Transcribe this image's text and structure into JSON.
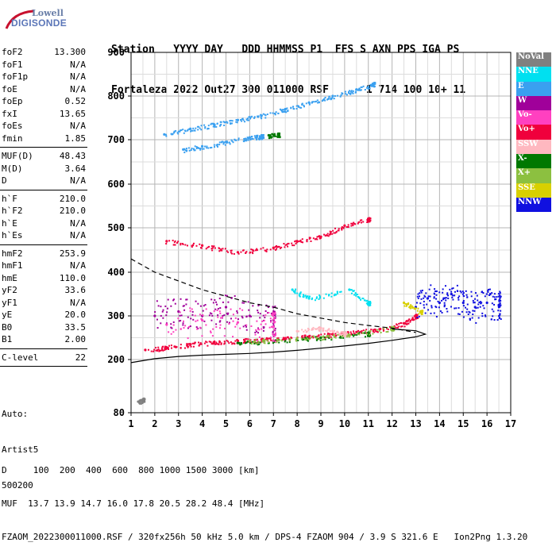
{
  "logo": {
    "line1": "Lowell",
    "line2": "DIGISONDE"
  },
  "header": {
    "line1": "Station   YYYY DAY   DDD HHMMSS P1  FFS S AXN PPS IGA PS",
    "line2": "Fortaleza 2022 Out27 300 011000 RSF      1 714 100 10+ 11"
  },
  "params": {
    "group1": [
      {
        "name": "foF2",
        "value": "13.300"
      },
      {
        "name": "foF1",
        "value": "N/A"
      },
      {
        "name": "foF1p",
        "value": "N/A"
      },
      {
        "name": "foE",
        "value": "N/A"
      },
      {
        "name": "foEp",
        "value": "0.52"
      },
      {
        "name": "fxI",
        "value": "13.65"
      },
      {
        "name": "foEs",
        "value": "N/A"
      },
      {
        "name": "fmin",
        "value": "1.85"
      }
    ],
    "group2": [
      {
        "name": "MUF(D)",
        "value": "48.43"
      },
      {
        "name": "M(D)",
        "value": "3.64"
      },
      {
        "name": "D",
        "value": "N/A"
      }
    ],
    "group3": [
      {
        "name": "h`F",
        "value": "210.0"
      },
      {
        "name": "h`F2",
        "value": "210.0"
      },
      {
        "name": "h`E",
        "value": "N/A"
      },
      {
        "name": "h`Es",
        "value": "N/A"
      }
    ],
    "group4": [
      {
        "name": "hmF2",
        "value": "253.9"
      },
      {
        "name": "hmF1",
        "value": "N/A"
      },
      {
        "name": "hmE",
        "value": "110.0"
      },
      {
        "name": "yF2",
        "value": "33.6"
      },
      {
        "name": "yF1",
        "value": "N/A"
      },
      {
        "name": "yE",
        "value": "20.0"
      },
      {
        "name": "B0",
        "value": "33.5"
      },
      {
        "name": "B1",
        "value": "2.00"
      }
    ],
    "group5": [
      {
        "name": "C-level",
        "value": "22"
      }
    ]
  },
  "auto": {
    "line1": "Auto:",
    "line2": "Artist5",
    "line3": "500200"
  },
  "legend": [
    {
      "label": "NoVal",
      "color": "#808080"
    },
    {
      "label": "NNE",
      "color": "#00e0f0"
    },
    {
      "label": "E",
      "color": "#3aa0f0"
    },
    {
      "label": "W",
      "color": "#a0009a"
    },
    {
      "label": "Vo-",
      "color": "#ff40c0"
    },
    {
      "label": "Vo+",
      "color": "#f0003c"
    },
    {
      "label": "SSW",
      "color": "#ffb8c0"
    },
    {
      "label": "X-",
      "color": "#007800"
    },
    {
      "label": "X+",
      "color": "#8cc040"
    },
    {
      "label": "SSE",
      "color": "#d8d000"
    },
    {
      "label": "NNW",
      "color": "#1010e0"
    }
  ],
  "footer": {
    "line1": "D     100  200  400  600  800 1000 1500 3000 [km]",
    "line2": "MUF  13.7 13.9 14.7 16.0 17.8 20.5 28.2 48.4 [MHz]",
    "line3": "FZAOM_2022300011000.RSF / 320fx256h 50 kHz 5.0 km / DPS-4 FZAOM 904 / 3.9 S 321.6 E   Ion2Png 1.3.20"
  },
  "chart_data": {
    "type": "scatter",
    "title": "",
    "xlabel": "",
    "ylabel": "",
    "xlim": [
      1,
      17
    ],
    "ylim": [
      80,
      900
    ],
    "x_ticks": [
      1,
      2,
      3,
      4,
      5,
      6,
      7,
      8,
      9,
      10,
      11,
      12,
      13,
      14,
      15,
      16,
      17
    ],
    "y_ticks": [
      80,
      200,
      300,
      400,
      500,
      600,
      700,
      800,
      900
    ],
    "grid": true,
    "legend_position": "right",
    "series": [
      {
        "name": "E",
        "values": [
          [
            2.4,
            712
          ],
          [
            3.5,
            725
          ],
          [
            4.5,
            735
          ],
          [
            5.5,
            745
          ],
          [
            6.5,
            755
          ],
          [
            7.5,
            770
          ],
          [
            8.5,
            785
          ],
          [
            9.5,
            800
          ],
          [
            10.5,
            815
          ],
          [
            11.2,
            828
          ]
        ]
      },
      {
        "name": "E",
        "values": [
          [
            3.2,
            678
          ],
          [
            4.0,
            685
          ],
          [
            5.0,
            695
          ],
          [
            6.0,
            705
          ],
          [
            6.5,
            708
          ]
        ]
      },
      {
        "name": "Vo+",
        "values": [
          [
            1.6,
            222
          ],
          [
            2.5,
            228
          ],
          [
            3.5,
            235
          ],
          [
            4.5,
            240
          ],
          [
            5.5,
            243
          ],
          [
            6.5,
            246
          ],
          [
            7.5,
            249
          ],
          [
            8.5,
            253
          ],
          [
            9.5,
            258
          ],
          [
            10.5,
            263
          ],
          [
            11.5,
            270
          ],
          [
            12.5,
            283
          ],
          [
            13.0,
            300
          ]
        ]
      },
      {
        "name": "X-",
        "values": [
          [
            5.5,
            238
          ],
          [
            7.0,
            242
          ],
          [
            9.0,
            250
          ],
          [
            11.0,
            260
          ]
        ]
      },
      {
        "name": "X+",
        "values": [
          [
            6.0,
            242
          ],
          [
            8.0,
            249
          ],
          [
            10.0,
            255
          ],
          [
            12.0,
            272
          ]
        ]
      },
      {
        "name": "W",
        "values": [
          [
            2.0,
            300
          ],
          [
            3.0,
            310
          ],
          [
            4.0,
            300
          ],
          [
            5.0,
            320
          ],
          [
            6.0,
            300
          ],
          [
            7.0,
            290
          ]
        ]
      },
      {
        "name": "Vo-",
        "values": [
          [
            2.5,
            280
          ],
          [
            4.0,
            290
          ],
          [
            5.5,
            285
          ],
          [
            7.0,
            275
          ]
        ]
      },
      {
        "name": "NNE",
        "values": [
          [
            7.8,
            360
          ],
          [
            8.5,
            340
          ],
          [
            10.2,
            360
          ],
          [
            11.0,
            330
          ]
        ]
      },
      {
        "name": "SSW",
        "values": [
          [
            8.0,
            265
          ],
          [
            9.0,
            272
          ],
          [
            10.0,
            260
          ]
        ]
      },
      {
        "name": "NNW",
        "values": [
          [
            13.0,
            320
          ],
          [
            13.5,
            340
          ],
          [
            14.0,
            330
          ],
          [
            14.5,
            350
          ],
          [
            15.0,
            330
          ],
          [
            15.5,
            320
          ],
          [
            16.0,
            330
          ],
          [
            16.5,
            325
          ]
        ]
      },
      {
        "name": "SSE",
        "values": [
          [
            12.5,
            330
          ],
          [
            13.2,
            310
          ]
        ]
      },
      {
        "name": "Vo+",
        "values": [
          [
            2.5,
            470
          ],
          [
            4.0,
            460
          ],
          [
            5.5,
            445
          ],
          [
            7.0,
            455
          ],
          [
            8.0,
            470
          ],
          [
            9.0,
            480
          ],
          [
            10.0,
            505
          ],
          [
            11.0,
            520
          ]
        ]
      },
      {
        "name": "X-",
        "values": [
          [
            6.8,
            710
          ],
          [
            7.2,
            712
          ]
        ]
      },
      {
        "name": "NoVal",
        "values": [
          [
            1.3,
            105
          ],
          [
            1.5,
            110
          ]
        ]
      }
    ],
    "curves": [
      {
        "name": "profile-dashed",
        "style": "dashed",
        "values": [
          [
            1.0,
            430
          ],
          [
            2.0,
            400
          ],
          [
            3.0,
            380
          ],
          [
            4.0,
            360
          ],
          [
            5.0,
            345
          ],
          [
            6.0,
            330
          ],
          [
            7.0,
            320
          ],
          [
            8.0,
            305
          ],
          [
            9.0,
            295
          ],
          [
            10.0,
            285
          ],
          [
            11.0,
            278
          ],
          [
            12.0,
            272
          ],
          [
            13.0,
            262
          ]
        ]
      },
      {
        "name": "profile-solid",
        "style": "solid",
        "values": [
          [
            1.0,
            193
          ],
          [
            2.0,
            202
          ],
          [
            3.0,
            207
          ],
          [
            4.0,
            210
          ],
          [
            5.0,
            212
          ],
          [
            6.0,
            214
          ],
          [
            7.0,
            217
          ],
          [
            8.0,
            221
          ],
          [
            9.0,
            226
          ],
          [
            10.0,
            231
          ],
          [
            11.0,
            237
          ],
          [
            12.0,
            244
          ],
          [
            13.0,
            252
          ],
          [
            13.4,
            258
          ],
          [
            13.0,
            266
          ],
          [
            12.0,
            270
          ]
        ]
      }
    ]
  }
}
